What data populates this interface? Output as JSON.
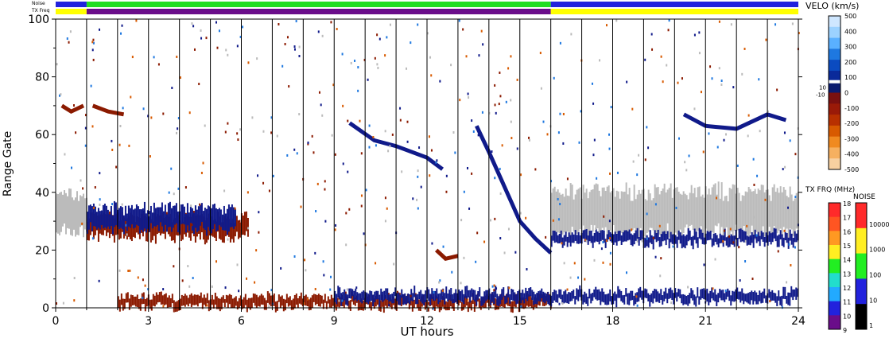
{
  "chart_data": [
    {
      "type": "heatmap",
      "xlabel": "UT hours",
      "ylabel": "Range Gate",
      "xlim": [
        0,
        24
      ],
      "ylim": [
        0,
        100
      ],
      "x_ticks": [
        0,
        3,
        6,
        9,
        12,
        15,
        18,
        21,
        24
      ],
      "y_ticks": [
        0,
        20,
        40,
        60,
        80,
        100
      ],
      "hour_marks": [
        1,
        2,
        3,
        4,
        5,
        6,
        7,
        8,
        9,
        10,
        11,
        12,
        13,
        14,
        15,
        16,
        17,
        18,
        19,
        20,
        21,
        22,
        23
      ],
      "strips": {
        "noise_label": "Noise",
        "txfreq_label": "TX Freq",
        "noise_segments": [
          {
            "start": 0,
            "end": 1.0,
            "color": "#2222dd"
          },
          {
            "start": 1.0,
            "end": 16.0,
            "color": "#22dd22"
          },
          {
            "start": 16.0,
            "end": 24.0,
            "color": "#2222dd"
          }
        ],
        "txfreq_segments": [
          {
            "start": 0,
            "end": 1.0,
            "color": "#ffff00"
          },
          {
            "start": 1.0,
            "end": 16.0,
            "color": "#6a0d8a"
          },
          {
            "start": 16.0,
            "end": 24.0,
            "color": "#ffff00"
          }
        ]
      },
      "scatter_features": [
        {
          "name": "ground scatter",
          "color": "#bbbbbb",
          "t_start": 0.0,
          "t_end": 1.0,
          "gate_center": 33,
          "gate_halfwidth": 7
        },
        {
          "name": "ground scatter",
          "color": "#bbbbbb",
          "t_start": 16.0,
          "t_end": 24.0,
          "gate_center": 33,
          "gate_halfwidth": 8
        },
        {
          "name": "negative velocity",
          "color": "#8b1a00",
          "t_start": 1.0,
          "t_end": 6.2,
          "gate_center": 28,
          "gate_halfwidth": 4
        },
        {
          "name": "positive velocity",
          "color": "#101a8a",
          "t_start": 1.0,
          "t_end": 5.8,
          "gate_center": 31,
          "gate_halfwidth": 4
        },
        {
          "name": "positive velocity",
          "color": "#101a8a",
          "t_start": 16.0,
          "t_end": 24.0,
          "gate_center": 24,
          "gate_halfwidth": 2
        },
        {
          "name": "near range",
          "color": "#8b1a00",
          "t_start": 2.0,
          "t_end": 16.0,
          "gate_center": 2,
          "gate_halfwidth": 2
        },
        {
          "name": "near range",
          "color": "#101a8a",
          "t_start": 9.0,
          "t_end": 24.0,
          "gate_center": 4,
          "gate_halfwidth": 2
        }
      ],
      "trails": [
        {
          "color": "#101a8a",
          "points": [
            [
              13.6,
              63
            ],
            [
              14.0,
              54
            ],
            [
              14.5,
              42
            ],
            [
              15.0,
              30
            ],
            [
              15.5,
              24
            ],
            [
              16.0,
              19
            ]
          ]
        },
        {
          "color": "#101a8a",
          "points": [
            [
              9.5,
              64
            ],
            [
              10.3,
              58
            ],
            [
              11.0,
              56
            ],
            [
              12.0,
              52
            ],
            [
              12.5,
              48
            ]
          ]
        },
        {
          "color": "#8b1a00",
          "points": [
            [
              0.2,
              70
            ],
            [
              0.5,
              68
            ],
            [
              0.9,
              70
            ]
          ]
        },
        {
          "color": "#8b1a00",
          "points": [
            [
              1.2,
              70
            ],
            [
              1.7,
              68
            ],
            [
              2.2,
              67
            ]
          ]
        },
        {
          "color": "#8b1a00",
          "points": [
            [
              12.3,
              20
            ],
            [
              12.6,
              17
            ],
            [
              13.0,
              18
            ]
          ]
        },
        {
          "color": "#101a8a",
          "points": [
            [
              20.3,
              67
            ],
            [
              21.0,
              63
            ],
            [
              22.0,
              62
            ],
            [
              23.0,
              67
            ],
            [
              23.6,
              65
            ]
          ]
        }
      ]
    },
    {
      "type": "heatmap",
      "title": "VELO (km/s)",
      "colorbar_ticks": [
        500,
        400,
        300,
        200,
        100,
        0,
        -100,
        -200,
        -300,
        -400,
        -500
      ],
      "inner_labels": [
        "10",
        "-10"
      ],
      "colors": [
        "#cfe7ff",
        "#9cd2ff",
        "#5ab0ff",
        "#1e78e0",
        "#0b4bc0",
        "#0a2a9a",
        "#0a1a70",
        "#7a1010",
        "#9a1a08",
        "#b83000",
        "#d85a00",
        "#f08a20",
        "#f6b060",
        "#f8d0a0"
      ]
    },
    {
      "type": "heatmap",
      "title": "TX FRQ (MHz)",
      "colorbar_ticks": [
        18,
        17,
        16,
        15,
        14,
        13,
        12,
        11,
        10,
        9
      ],
      "colors": [
        "#ff2a2a",
        "#ff5522",
        "#ff9922",
        "#ffee22",
        "#22ee22",
        "#22ddcc",
        "#22aaff",
        "#2222dd",
        "#6a0d8a"
      ]
    },
    {
      "type": "heatmap",
      "title": "NOISE",
      "colorbar_ticks": [
        "10000",
        "1000",
        "100",
        "10",
        "1"
      ],
      "colors": [
        "#ff2a2a",
        "#ffee22",
        "#22ee22",
        "#2222dd",
        "#000000"
      ]
    }
  ]
}
